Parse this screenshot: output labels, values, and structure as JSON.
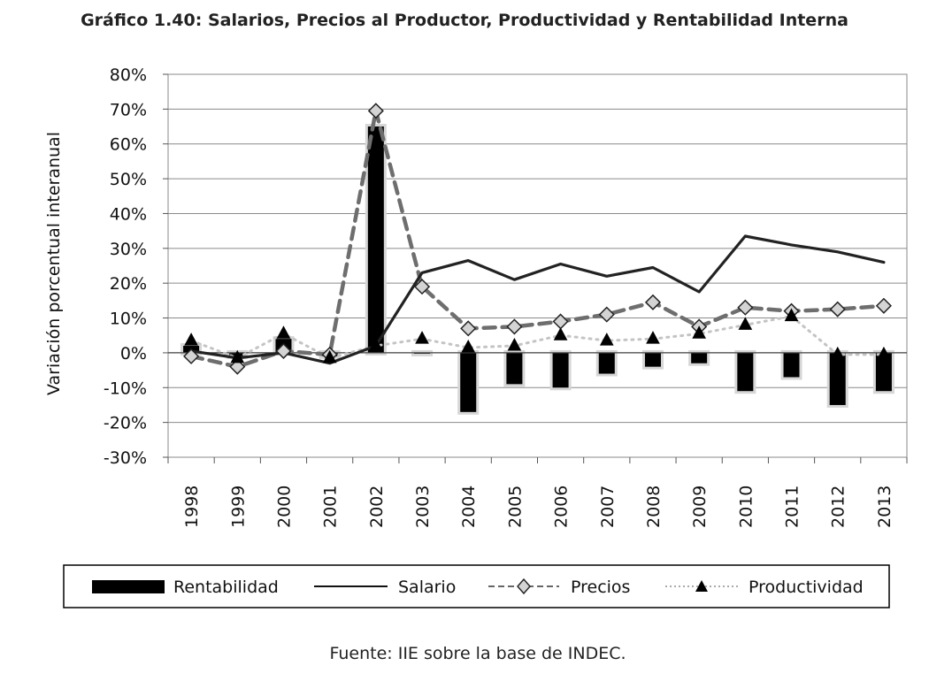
{
  "chart_data": {
    "type": "bar",
    "title": "Gráfico 1.40: Salarios, Precios al Productor, Productividad y Rentabilidad Interna",
    "xlabel": "",
    "ylabel": "Variación porcentual interanual",
    "ylim": [
      -30,
      80
    ],
    "yticks": [
      -30,
      -20,
      -10,
      0,
      10,
      20,
      30,
      40,
      50,
      60,
      70,
      80
    ],
    "ytick_labels": [
      "-30%",
      "-20%",
      "-10%",
      "0%",
      "10%",
      "20%",
      "30%",
      "40%",
      "50%",
      "60%",
      "70%",
      "80%"
    ],
    "grid": true,
    "legend_position": "bottom",
    "categories": [
      "1998",
      "1999",
      "2000",
      "2001",
      "2002",
      "2003",
      "2004",
      "2005",
      "2006",
      "2007",
      "2008",
      "2009",
      "2010",
      "2011",
      "2012",
      "2013"
    ],
    "series": [
      {
        "name": "Rentabilidad",
        "type": "bar",
        "values": [
          2,
          -1,
          4,
          -1,
          65,
          0,
          -17,
          -9,
          -10,
          -6,
          -4,
          -3,
          -11,
          -7,
          -15,
          -11
        ]
      },
      {
        "name": "Salario",
        "type": "line",
        "values": [
          0.5,
          -1.5,
          0,
          -3,
          2,
          23,
          26.5,
          21,
          25.5,
          22,
          24.5,
          17.5,
          33.5,
          31,
          29,
          26
        ]
      },
      {
        "name": "Precios",
        "type": "line",
        "values": [
          -1,
          -4,
          0.5,
          -0.5,
          69.5,
          19,
          7,
          7.5,
          9,
          11,
          14.5,
          7.5,
          13,
          12,
          12.5,
          13.5
        ]
      },
      {
        "name": "Productividad",
        "type": "line",
        "values": [
          3.5,
          -1.5,
          5.5,
          -1.5,
          2,
          4,
          1.5,
          2,
          5,
          3.5,
          4,
          5.5,
          8,
          10.5,
          -0.5,
          -0.5
        ]
      }
    ]
  },
  "source": "Fuente: IIE sobre la base de INDEC."
}
